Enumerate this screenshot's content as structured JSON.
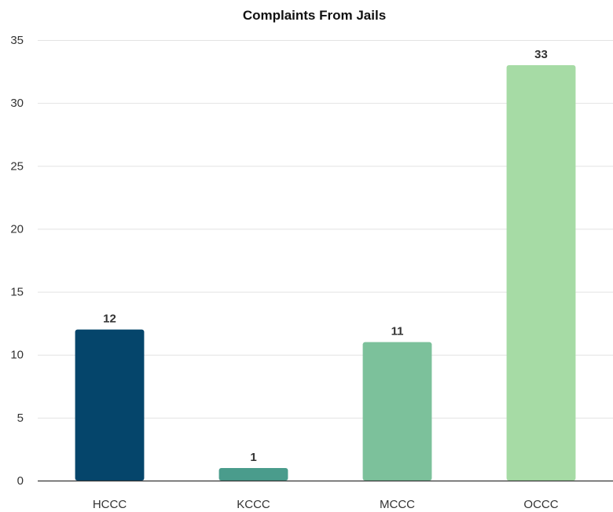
{
  "chart_data": {
    "type": "bar",
    "title": "Complaints From Jails",
    "categories": [
      "HCCC",
      "KCCC",
      "MCCC",
      "OCCC"
    ],
    "values": [
      12,
      1,
      11,
      33
    ],
    "colors": [
      "#05456b",
      "#4a9c8c",
      "#7cc19b",
      "#a6dba5"
    ],
    "ylim": [
      0,
      35
    ],
    "yticks": [
      0,
      5,
      10,
      15,
      20,
      25,
      30,
      35
    ],
    "grid": true,
    "legend": "none"
  }
}
